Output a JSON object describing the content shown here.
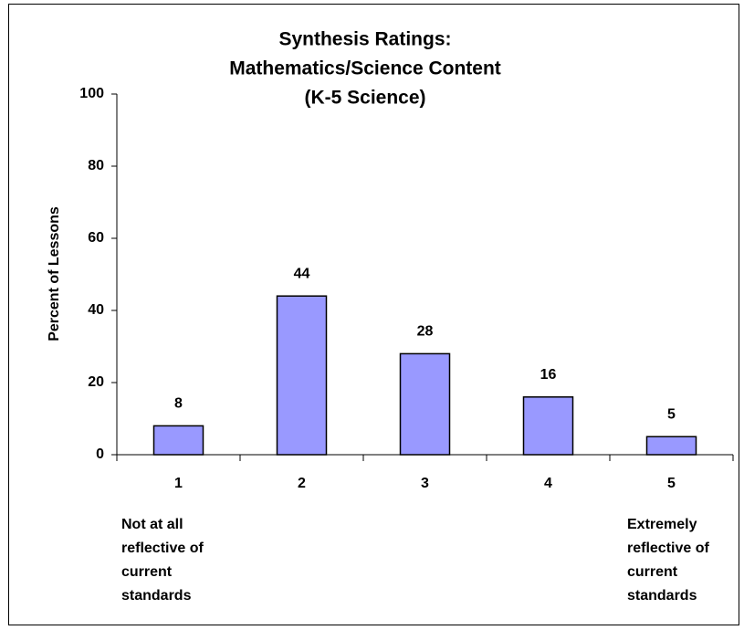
{
  "chart_data": {
    "type": "bar",
    "title": [
      "Synthesis Ratings:",
      "Mathematics/Science Content",
      "(K-5 Science)"
    ],
    "y_label": "Percent of Lessons",
    "categories": [
      "1",
      "2",
      "3",
      "4",
      "5"
    ],
    "values": [
      8,
      44,
      28,
      16,
      5
    ],
    "color": "#9999ff",
    "ylim": [
      0,
      100
    ],
    "yticks": [
      0,
      20,
      40,
      60,
      80,
      100
    ],
    "grid": false,
    "annotations": [
      [
        "Not at all",
        "reflective of",
        "current",
        "standards"
      ],
      [
        "Extremely",
        "reflective of",
        "current",
        "standards"
      ]
    ]
  }
}
